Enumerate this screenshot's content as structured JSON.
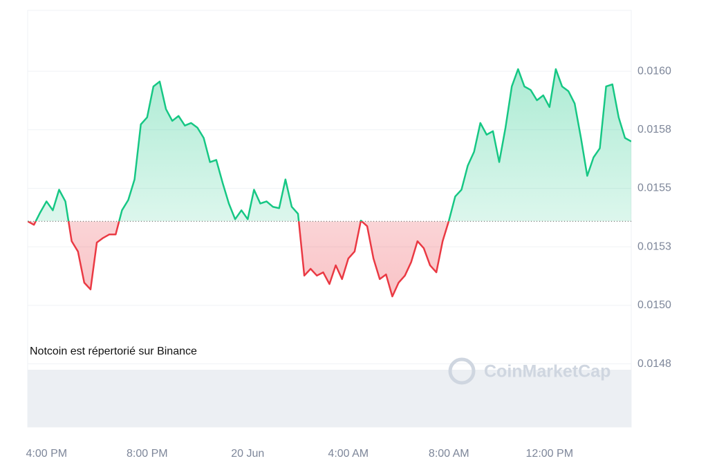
{
  "chart_data": {
    "type": "baseline-line",
    "annotation": "Notcoin est répertorié sur Binance",
    "watermark": "CoinMarketCap",
    "categories": [
      null,
      null,
      null,
      "4:00 PM",
      null,
      null,
      null,
      null,
      null,
      null,
      null,
      null,
      null,
      null,
      null,
      null,
      null,
      null,
      null,
      "8:00 PM",
      null,
      null,
      null,
      null,
      null,
      null,
      null,
      null,
      null,
      null,
      null,
      null,
      null,
      null,
      null,
      "20 Jun",
      null,
      null,
      null,
      null,
      null,
      null,
      null,
      null,
      null,
      null,
      null,
      null,
      null,
      null,
      null,
      "4:00 AM",
      null,
      null,
      null,
      null,
      null,
      null,
      null,
      null,
      null,
      null,
      null,
      null,
      null,
      null,
      null,
      "8:00 AM",
      null,
      null,
      null,
      null,
      null,
      null,
      null,
      null,
      null,
      null,
      null,
      null,
      null,
      null,
      null,
      "12:00 PM",
      null,
      null,
      null,
      null,
      null,
      null,
      null,
      null,
      null,
      null,
      null,
      null,
      null
    ],
    "values": [
      0.015359,
      0.015344,
      0.015397,
      0.015444,
      0.015406,
      0.015494,
      0.015444,
      0.015274,
      0.01523,
      0.015097,
      0.015068,
      0.015268,
      0.015288,
      0.015303,
      0.015303,
      0.015406,
      0.01545,
      0.015538,
      0.015773,
      0.015803,
      0.015935,
      0.015956,
      0.015838,
      0.015788,
      0.015809,
      0.015768,
      0.015779,
      0.015759,
      0.015715,
      0.015612,
      0.015621,
      0.015524,
      0.015435,
      0.015368,
      0.015406,
      0.015368,
      0.015494,
      0.015435,
      0.015444,
      0.015421,
      0.015415,
      0.015538,
      0.015421,
      0.015391,
      0.015127,
      0.015156,
      0.015127,
      0.015141,
      0.015091,
      0.015171,
      0.015112,
      0.0152,
      0.01523,
      0.015362,
      0.015338,
      0.0152,
      0.015112,
      0.015132,
      0.015038,
      0.015097,
      0.015127,
      0.015185,
      0.015274,
      0.015244,
      0.015171,
      0.015141,
      0.015274,
      0.015362,
      0.015465,
      0.015494,
      0.015597,
      0.015656,
      0.015779,
      0.015729,
      0.015744,
      0.015612,
      0.015759,
      0.015935,
      0.016009,
      0.015935,
      0.01592,
      0.015876,
      0.015897,
      0.015847,
      0.016009,
      0.015935,
      0.015915,
      0.015862,
      0.015715,
      0.015553,
      0.015632,
      0.015671,
      0.015935,
      0.015944,
      0.015803,
      0.015715,
      0.0157
    ],
    "baseline": 0.015359,
    "up_color": "#16c784",
    "down_color": "#ea3943",
    "ylim": [
      0.01448,
      0.01626
    ],
    "yticks": [
      {
        "value": 0.016,
        "label": "0.0160"
      },
      {
        "value": 0.01575,
        "label": "0.0158"
      },
      {
        "value": 0.0155,
        "label": "0.0155"
      },
      {
        "value": 0.01525,
        "label": "0.0153"
      },
      {
        "value": 0.015,
        "label": "0.0150"
      },
      {
        "value": 0.01475,
        "label": "0.0148"
      }
    ],
    "grid": true
  }
}
